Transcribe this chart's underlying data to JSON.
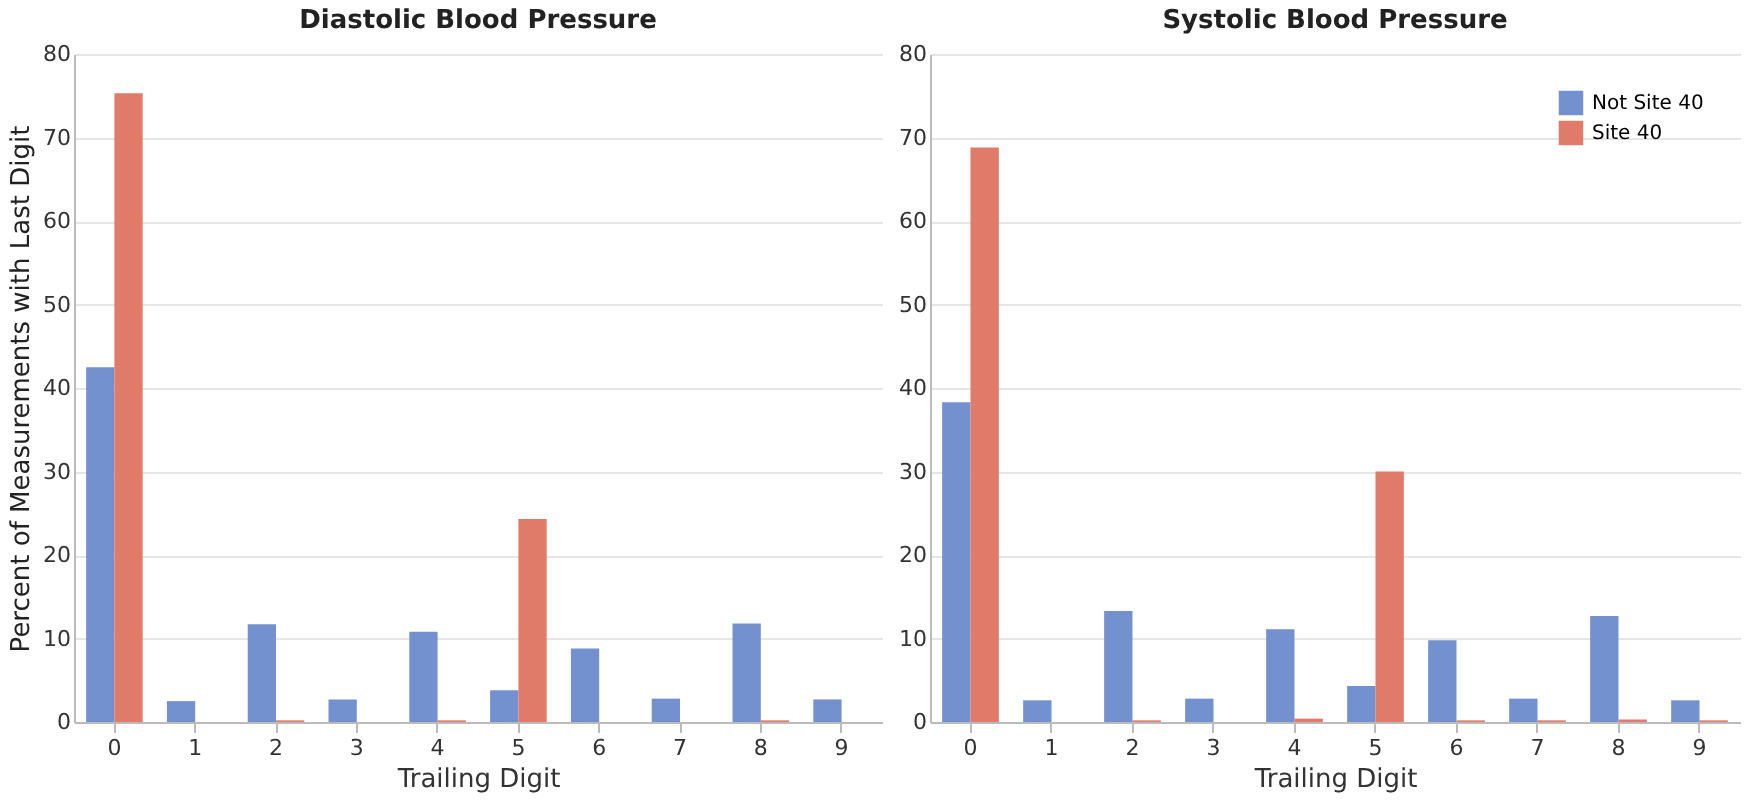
{
  "chart_data": [
    {
      "type": "bar",
      "title": "Diastolic Blood Pressure",
      "xlabel": "Trailing Digit",
      "ylabel": "Percent of Measurements with Last Digit",
      "categories": [
        "0",
        "1",
        "2",
        "3",
        "4",
        "5",
        "6",
        "7",
        "8",
        "9"
      ],
      "series": [
        {
          "color": "#7391cf",
          "values": [
            42.5,
            2.5,
            11.7,
            2.7,
            10.8,
            3.8,
            8.8,
            2.8,
            11.8,
            2.7
          ]
        },
        {
          "color": "#e07b6a",
          "values": [
            75.3,
            0,
            0.2,
            0,
            0.2,
            24.3,
            0,
            0,
            0.2,
            0
          ]
        }
      ],
      "ylim": [
        0,
        80
      ],
      "yticks": [
        0,
        10,
        20,
        30,
        40,
        50,
        60,
        70,
        80
      ],
      "grid": "y"
    },
    {
      "type": "bar",
      "title": "Systolic Blood Pressure",
      "xlabel": "Trailing Digit",
      "categories": [
        "0",
        "1",
        "2",
        "3",
        "4",
        "5",
        "6",
        "7",
        "8",
        "9"
      ],
      "series": [
        {
          "name": "Not Site 40",
          "color": "#7391cf",
          "values": [
            38.3,
            2.6,
            13.3,
            2.8,
            11.1,
            4.3,
            9.8,
            2.8,
            12.7,
            2.6
          ]
        },
        {
          "name": "Site 40",
          "color": "#e07b6a",
          "values": [
            68.8,
            0,
            0.2,
            0,
            0.4,
            30.0,
            0.2,
            0.2,
            0.3,
            0.2
          ]
        }
      ],
      "ylim": [
        0,
        80
      ],
      "yticks": [
        0,
        10,
        20,
        30,
        40,
        50,
        60,
        70,
        80
      ],
      "grid": "y",
      "legend": "top right"
    }
  ]
}
